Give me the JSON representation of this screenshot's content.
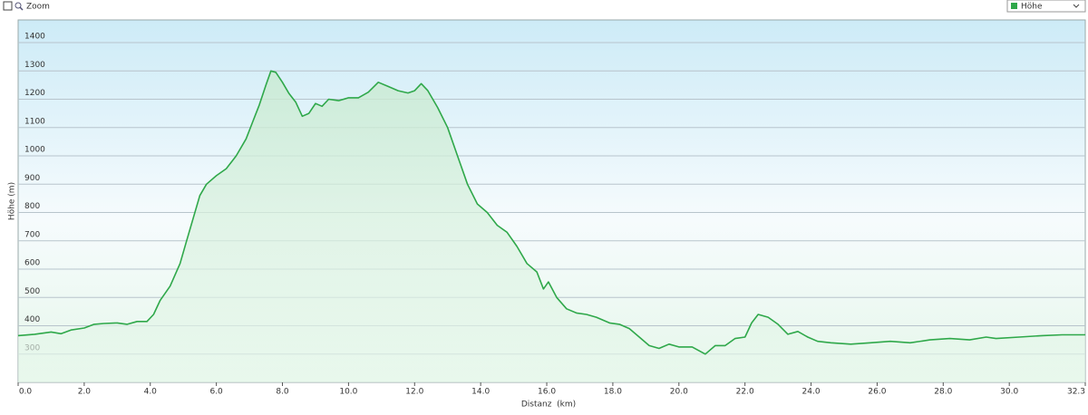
{
  "toolbar": {
    "zoom": "Zoom"
  },
  "chart_data": {
    "type": "area",
    "x_label": "Distanz  (km)",
    "y_label": "Höhe (m)",
    "xlim": [
      0,
      32.3
    ],
    "ylim": [
      200,
      1480
    ],
    "xticks": [
      {
        "value": 0,
        "label": "0.0"
      },
      {
        "value": 2,
        "label": "2.0"
      },
      {
        "value": 4,
        "label": "4.0"
      },
      {
        "value": 6,
        "label": "6.0"
      },
      {
        "value": 8,
        "label": "8.0"
      },
      {
        "value": 10,
        "label": "10.0"
      },
      {
        "value": 12,
        "label": "12.0"
      },
      {
        "value": 14,
        "label": "14.0"
      },
      {
        "value": 16,
        "label": "16.0"
      },
      {
        "value": 18,
        "label": "18.0"
      },
      {
        "value": 20,
        "label": "20.0"
      },
      {
        "value": 22,
        "label": "22.0"
      },
      {
        "value": 24,
        "label": "24.0"
      },
      {
        "value": 26,
        "label": "26.0"
      },
      {
        "value": 28,
        "label": "28.0"
      },
      {
        "value": 30,
        "label": "30.0"
      },
      32.3
    ],
    "yticks": [
      300,
      400,
      500,
      600,
      700,
      800,
      900,
      1000,
      1100,
      1200,
      1300,
      1400
    ],
    "grid": true,
    "x": [
      0,
      0.5,
      1.0,
      1.3,
      1.6,
      2.0,
      2.3,
      2.6,
      3.0,
      3.3,
      3.6,
      3.9,
      4.1,
      4.3,
      4.6,
      4.9,
      5.1,
      5.3,
      5.5,
      5.7,
      6.0,
      6.3,
      6.6,
      6.9,
      7.1,
      7.3,
      7.5,
      7.65,
      7.8,
      8.0,
      8.2,
      8.4,
      8.6,
      8.8,
      9.0,
      9.2,
      9.4,
      9.7,
      10.0,
      10.3,
      10.6,
      10.9,
      11.2,
      11.5,
      11.8,
      12.0,
      12.2,
      12.4,
      12.7,
      13.0,
      13.3,
      13.6,
      13.9,
      14.2,
      14.5,
      14.8,
      15.1,
      15.4,
      15.7,
      15.9,
      16.05,
      16.3,
      16.6,
      16.9,
      17.2,
      17.5,
      17.9,
      18.2,
      18.5,
      18.8,
      19.1,
      19.4,
      19.7,
      20.0,
      20.4,
      20.8,
      21.1,
      21.4,
      21.7,
      22.0,
      22.2,
      22.4,
      22.7,
      23.0,
      23.3,
      23.6,
      23.9,
      24.2,
      24.6,
      25.2,
      25.8,
      26.4,
      27.0,
      27.6,
      28.2,
      28.8,
      29.3,
      29.6,
      30.3,
      31.0,
      31.6,
      32.3
    ],
    "series": [
      {
        "name": "Höhe",
        "color": "#2fa84a",
        "values": [
          365,
          370,
          378,
          372,
          385,
          392,
          405,
          408,
          410,
          405,
          415,
          415,
          440,
          490,
          540,
          620,
          700,
          780,
          860,
          900,
          930,
          955,
          1000,
          1060,
          1120,
          1180,
          1250,
          1300,
          1295,
          1260,
          1220,
          1190,
          1140,
          1150,
          1185,
          1175,
          1200,
          1195,
          1205,
          1205,
          1225,
          1260,
          1245,
          1230,
          1222,
          1230,
          1255,
          1230,
          1170,
          1100,
          1000,
          900,
          830,
          800,
          755,
          730,
          680,
          620,
          590,
          530,
          555,
          500,
          460,
          445,
          440,
          430,
          410,
          405,
          390,
          360,
          330,
          320,
          335,
          325,
          325,
          300,
          330,
          330,
          355,
          360,
          410,
          440,
          430,
          405,
          370,
          380,
          360,
          345,
          340,
          335,
          340,
          345,
          340,
          350,
          355,
          350,
          360,
          355,
          360,
          365,
          368,
          368
        ]
      }
    ]
  }
}
